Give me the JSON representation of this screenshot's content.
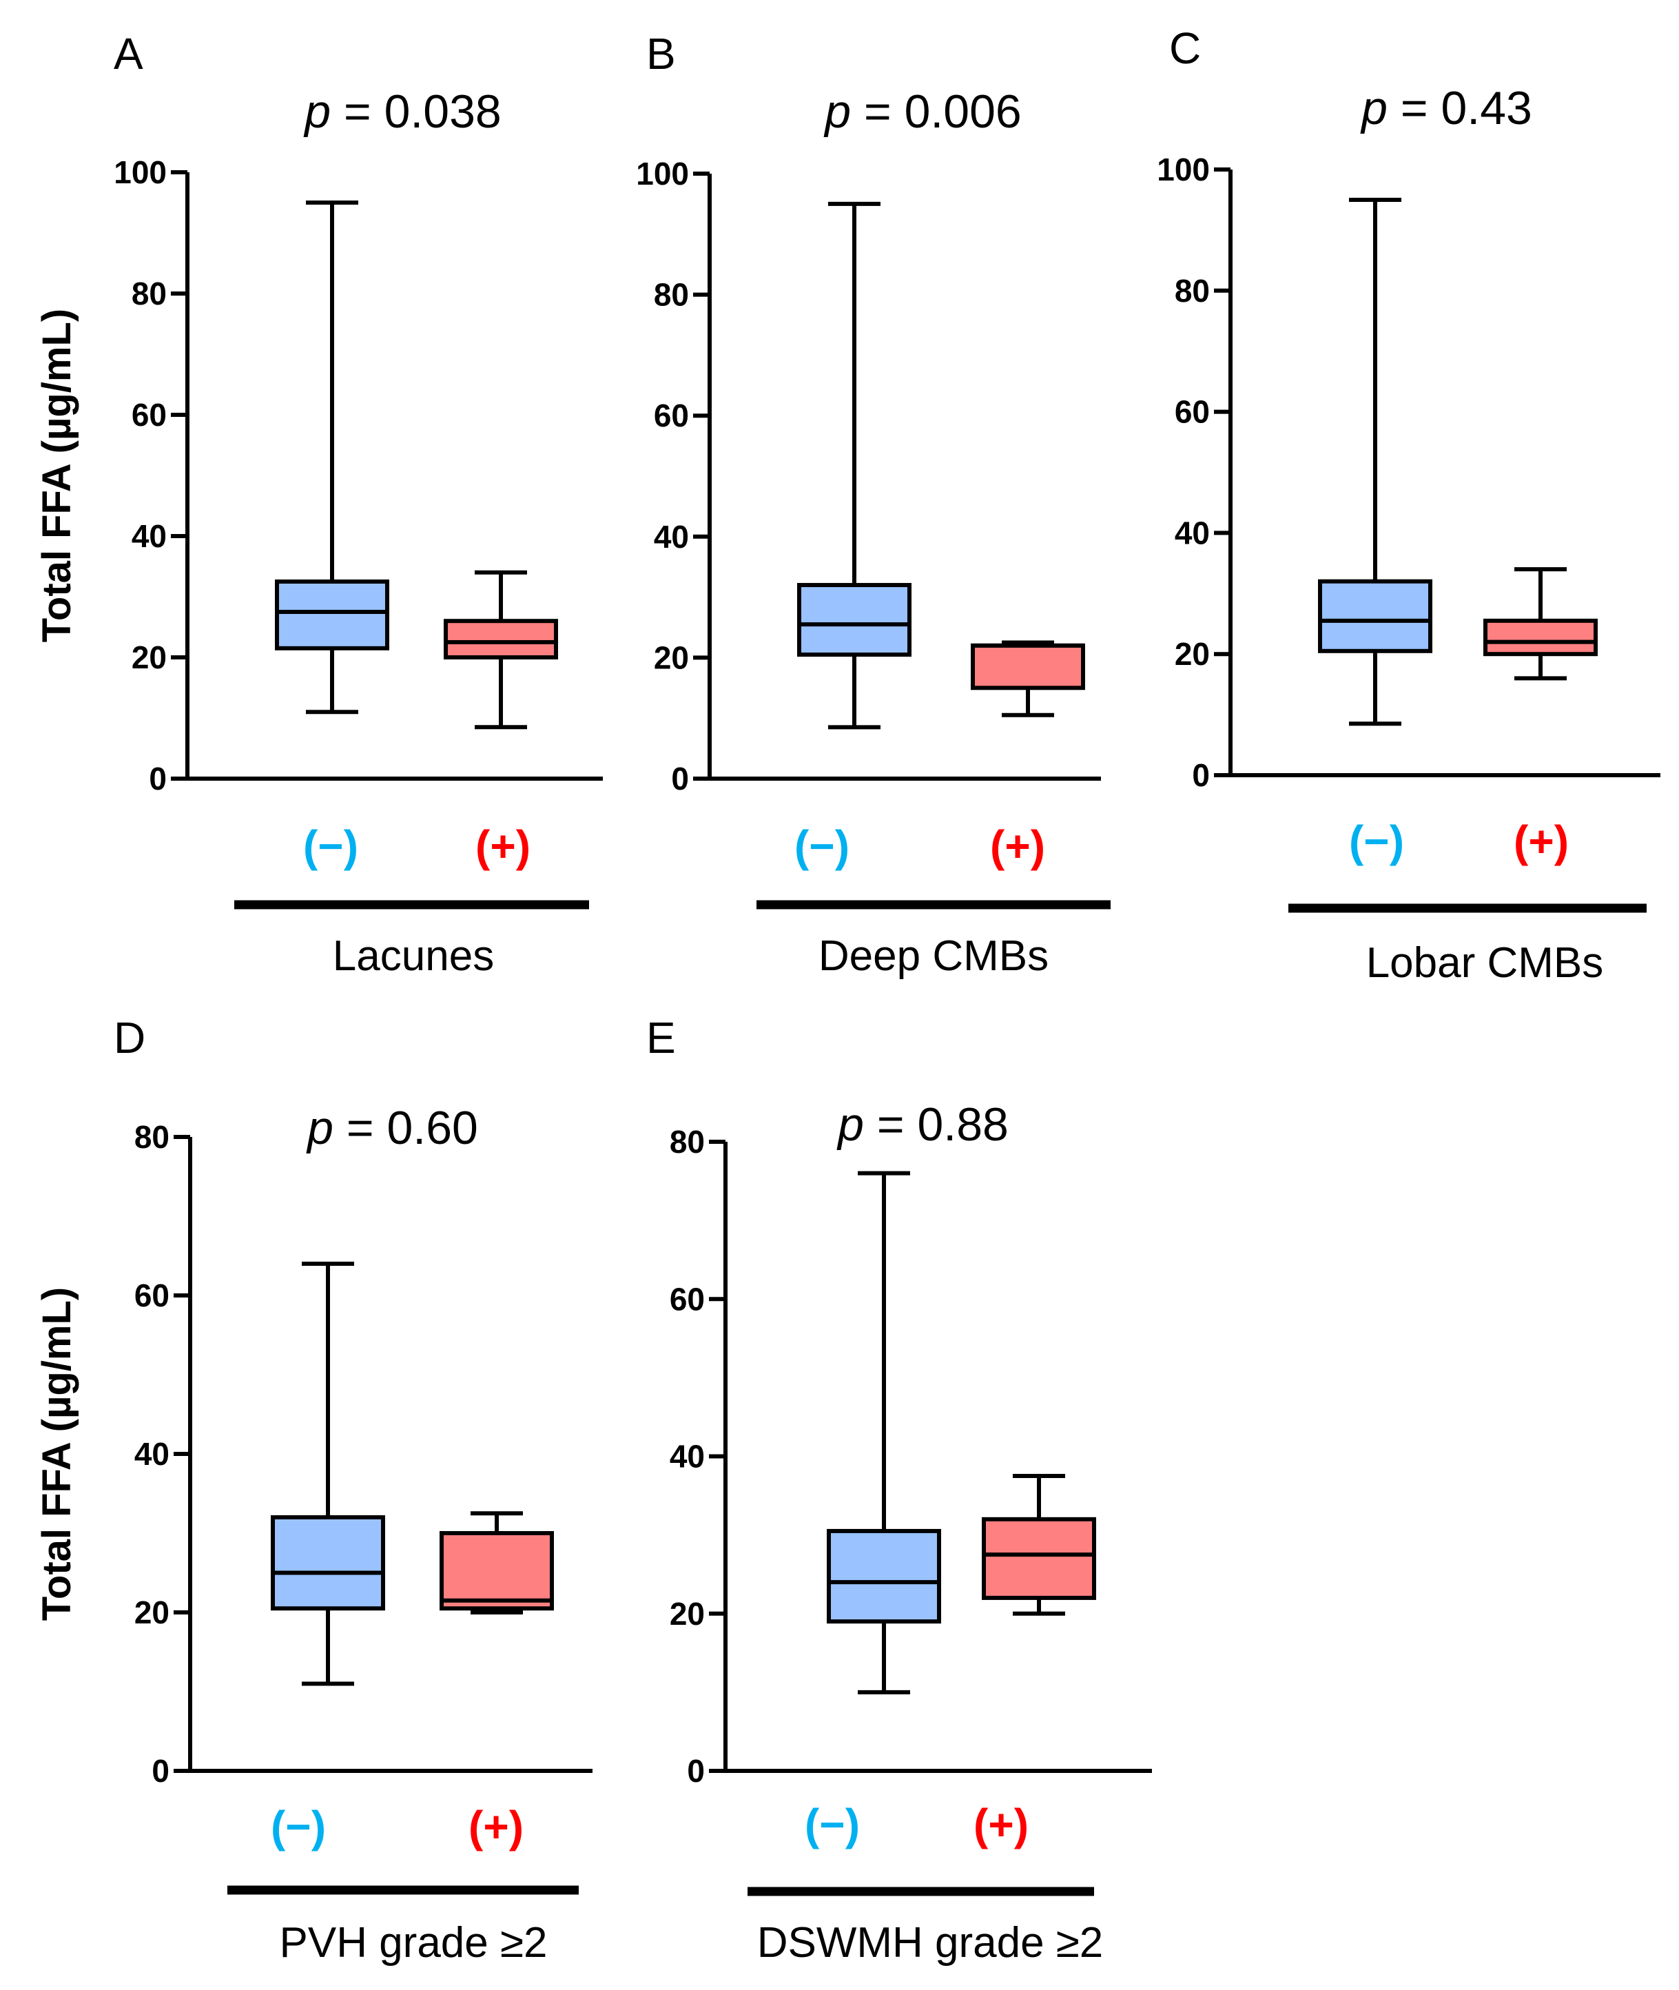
{
  "colors": {
    "negative_box": "#99c2ff",
    "positive_box": "#ff8080",
    "negative_label": "#00b0f0",
    "positive_label": "#ff0000",
    "line": "#000000"
  },
  "y_axis_label": "Total FFA (µg/mL)",
  "chart_data": [
    {
      "type": "box",
      "panel": "A",
      "p_prefix": "p",
      "p_value": "= 0.038",
      "group_label": "Lacunes",
      "ylabel": "Total FFA (µg/mL)",
      "ylim": [
        0,
        100
      ],
      "yticks": [
        0,
        20,
        40,
        60,
        80,
        100
      ],
      "categories": [
        "(−)",
        "(+)"
      ],
      "boxes": [
        {
          "category": "(−)",
          "min": 11,
          "q1": 21.5,
          "median": 27.5,
          "q3": 32.5,
          "max": 95
        },
        {
          "category": "(+)",
          "min": 8.5,
          "q1": 20,
          "median": 22.5,
          "q3": 26,
          "max": 34
        }
      ]
    },
    {
      "type": "box",
      "panel": "B",
      "p_prefix": "p",
      "p_value": "= 0.006",
      "group_label": "Deep CMBs",
      "ylabel": "",
      "ylim": [
        0,
        100
      ],
      "yticks": [
        0,
        20,
        40,
        60,
        80,
        100
      ],
      "categories": [
        "(−)",
        "(+)"
      ],
      "boxes": [
        {
          "category": "(−)",
          "min": 8.5,
          "q1": 20.5,
          "median": 25.5,
          "q3": 32,
          "max": 95
        },
        {
          "category": "(+)",
          "min": 10.5,
          "q1": 15,
          "median": 22,
          "q3": 22,
          "max": 22.5
        }
      ]
    },
    {
      "type": "box",
      "panel": "C",
      "p_prefix": "p",
      "p_value": "= 0.43",
      "group_label": "Lobar CMBs",
      "ylabel": "",
      "ylim": [
        0,
        100
      ],
      "yticks": [
        0,
        20,
        40,
        60,
        80,
        100
      ],
      "categories": [
        "(−)",
        "(+)"
      ],
      "boxes": [
        {
          "category": "(−)",
          "min": 8.5,
          "q1": 20.5,
          "median": 25.5,
          "q3": 32,
          "max": 95
        },
        {
          "category": "(+)",
          "min": 16,
          "q1": 20,
          "median": 22,
          "q3": 25.5,
          "max": 34
        }
      ]
    },
    {
      "type": "box",
      "panel": "D",
      "p_prefix": "p",
      "p_value": "= 0.60",
      "group_label": "PVH grade ≥2",
      "ylabel": "Total FFA (µg/mL)",
      "ylim": [
        0,
        80
      ],
      "yticks": [
        0,
        20,
        40,
        60,
        80
      ],
      "categories": [
        "(−)",
        "(+)"
      ],
      "boxes": [
        {
          "category": "(−)",
          "min": 11,
          "q1": 20.5,
          "median": 25,
          "q3": 32,
          "max": 64
        },
        {
          "category": "(+)",
          "min": 20,
          "q1": 20.5,
          "median": 21.5,
          "q3": 30,
          "max": 32.5
        }
      ]
    },
    {
      "type": "box",
      "panel": "E",
      "p_prefix": "p",
      "p_value": "= 0.88",
      "group_label": "DSWMH grade ≥2",
      "ylabel": "",
      "ylim": [
        0,
        80
      ],
      "yticks": [
        0,
        20,
        40,
        60,
        80
      ],
      "categories": [
        "(−)",
        "(+)"
      ],
      "boxes": [
        {
          "category": "(−)",
          "min": 10,
          "q1": 19,
          "median": 24,
          "q3": 30.5,
          "max": 76
        },
        {
          "category": "(+)",
          "min": 20,
          "q1": 22,
          "median": 27.5,
          "q3": 32,
          "max": 37.5
        }
      ]
    }
  ]
}
